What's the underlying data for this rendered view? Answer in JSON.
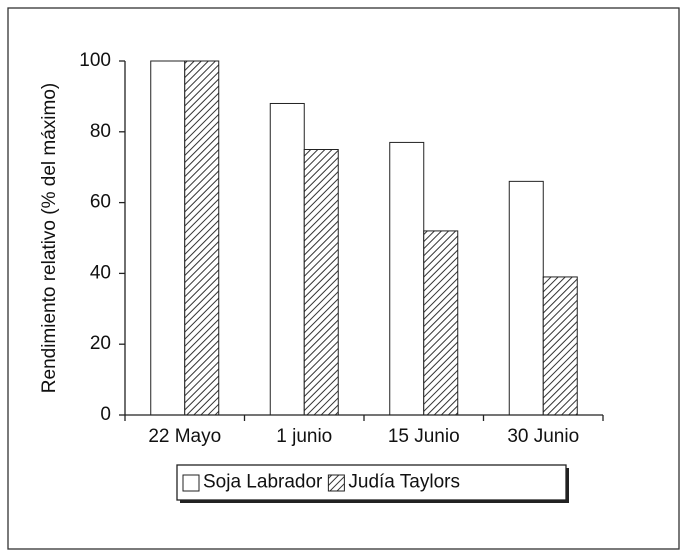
{
  "chart_data": {
    "type": "bar",
    "y_label": "Rendimiento relativo (% del máximo)",
    "categories": [
      "22 Mayo",
      "1 junio",
      "15 Junio",
      "30 Junio"
    ],
    "series": [
      {
        "name": "Soja Labrador",
        "color": "#ffffff",
        "hatch": false,
        "values": [
          100,
          88,
          77,
          66
        ]
      },
      {
        "name": "Judía Taylors",
        "color": "#333333",
        "hatch": true,
        "values": [
          100,
          75,
          52,
          39
        ]
      }
    ],
    "ylim": [
      0,
      100
    ],
    "yticks": [
      0,
      20,
      40,
      60,
      80,
      100
    ],
    "grid": false,
    "legend": "bottom"
  }
}
